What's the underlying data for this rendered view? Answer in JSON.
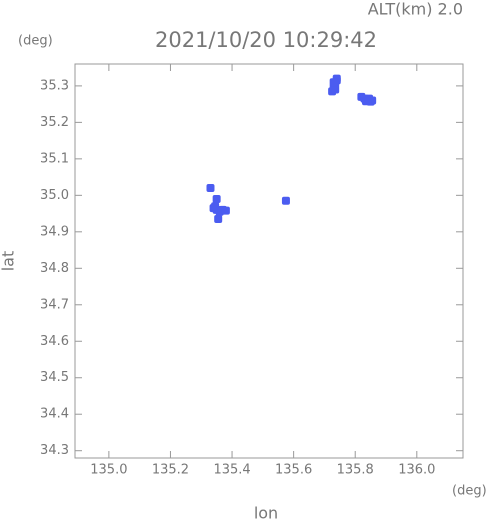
{
  "chart_data": {
    "type": "scatter",
    "title": "2021/10/20 10:29:42",
    "subtitle": "ALT(km) 2.0",
    "x_label": "lon",
    "y_label": "lat",
    "x_unit": "(deg)",
    "y_unit": "(deg)",
    "xlim": [
      134.89,
      136.15
    ],
    "ylim": [
      34.28,
      35.36
    ],
    "xticks": [
      {
        "value": 135,
        "label": "135.0"
      },
      135.2,
      135.4,
      135.6,
      135.8,
      {
        "value": 136,
        "label": "136.0"
      }
    ],
    "yticks": [
      34.3,
      34.4,
      34.5,
      34.6,
      34.7,
      34.8,
      34.9,
      {
        "value": 35,
        "label": "35.0"
      },
      35.1,
      35.2,
      35.3
    ],
    "color": "#4b5cf0",
    "x": [
      135.725,
      135.73,
      135.735,
      135.735,
      135.74,
      135.74,
      135.73,
      135.82,
      135.83,
      135.84,
      135.85,
      135.855,
      135.835,
      135.845,
      135.345,
      135.35,
      135.35,
      135.36,
      135.37,
      135.38,
      135.355,
      135.34,
      135.33,
      135.575
    ],
    "y": [
      35.285,
      35.295,
      35.305,
      35.29,
      35.315,
      35.32,
      35.31,
      35.27,
      35.265,
      35.26,
      35.257,
      35.26,
      35.258,
      35.265,
      34.97,
      34.99,
      34.96,
      34.955,
      34.96,
      34.958,
      34.935,
      34.965,
      35.02,
      34.985
    ]
  }
}
